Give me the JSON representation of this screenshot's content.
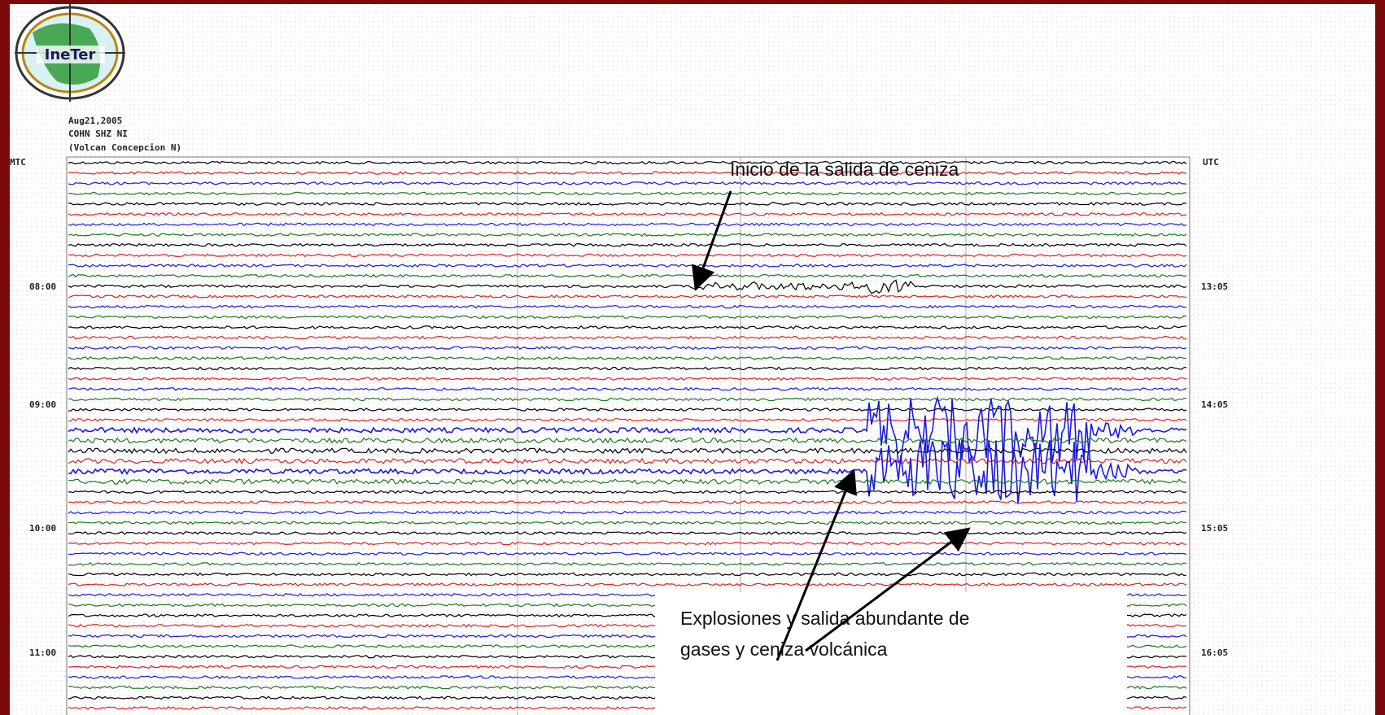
{
  "logo": "IneTer",
  "header": {
    "date": "Aug21,2005",
    "station": "COHN SHZ NI",
    "volcano": "(Volcan Concepcion N)"
  },
  "axis": {
    "left_label": "MTC",
    "right_label": "UTC",
    "left_times": [
      "08:00",
      "09:00",
      "10:00",
      "11:00"
    ],
    "right_times": [
      "13:05",
      "14:05",
      "15:05",
      "16:05"
    ]
  },
  "annotations": {
    "onset": "Inicio de la salida de ceniza",
    "explosions": [
      "Explosiones y salida abundante de",
      "gases y ceniza volcánica"
    ]
  }
}
